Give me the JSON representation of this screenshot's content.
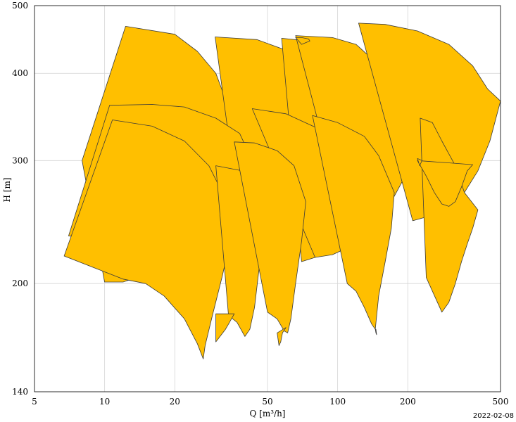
{
  "chart_data": {
    "type": "area",
    "description_unit": "pump performance ranges",
    "xlabel": "Q [m³/h]",
    "ylabel": "H [m]",
    "x_scale": "log",
    "y_scale": "log",
    "xlim": [
      5,
      500
    ],
    "ylim": [
      140,
      500
    ],
    "x_ticks": [
      5,
      10,
      20,
      50,
      100,
      200,
      500
    ],
    "x_tick_labels": [
      "5",
      "10",
      "20",
      "50",
      "100",
      "200",
      "500"
    ],
    "y_ticks": [
      140,
      200,
      300,
      400,
      500
    ],
    "y_tick_labels": [
      "140",
      "200",
      "300",
      "400",
      "500"
    ],
    "grid": true,
    "fill_color": "#FFBF00",
    "edge_color": "#3a3a3a",
    "footer_date": "2022-02-08",
    "series": [
      {
        "points": [
          [
            8,
            300
          ],
          [
            12.3,
            467
          ],
          [
            20,
            455
          ],
          [
            25,
            430
          ],
          [
            30,
            400
          ],
          [
            36,
            340
          ],
          [
            37,
            300
          ],
          [
            33,
            262
          ],
          [
            28,
            240
          ],
          [
            22,
            222
          ],
          [
            18,
            212
          ],
          [
            15,
            206
          ],
          [
            12,
            201
          ],
          [
            10,
            201
          ],
          [
            8,
            300
          ]
        ]
      },
      {
        "points": [
          [
            29.8,
            451
          ],
          [
            45,
            447
          ],
          [
            62,
            430
          ],
          [
            78,
            400
          ],
          [
            100,
            360
          ],
          [
            105,
            330
          ],
          [
            100,
            300
          ],
          [
            80,
            262
          ],
          [
            60,
            235
          ],
          [
            50,
            225
          ],
          [
            40,
            219
          ],
          [
            29.8,
            451
          ]
        ]
      },
      {
        "points": [
          [
            57.5,
            449
          ],
          [
            75,
            445
          ],
          [
            95,
            430
          ],
          [
            115,
            410
          ],
          [
            140,
            380
          ],
          [
            165,
            340
          ],
          [
            170,
            305
          ],
          [
            162,
            295
          ],
          [
            140,
            265
          ],
          [
            120,
            240
          ],
          [
            100,
            225
          ],
          [
            80,
            218
          ],
          [
            70,
            215
          ],
          [
            57.5,
            449
          ]
        ]
      },
      {
        "points": [
          [
            66,
            453
          ],
          [
            95,
            450
          ],
          [
            120,
            440
          ],
          [
            140,
            420
          ],
          [
            180,
            380
          ],
          [
            210,
            340
          ],
          [
            212,
            310
          ],
          [
            195,
            285
          ],
          [
            170,
            262
          ],
          [
            150,
            250
          ],
          [
            130,
            242
          ],
          [
            110,
            236
          ],
          [
            66,
            453
          ]
        ]
      },
      {
        "points": [
          [
            123,
            472
          ],
          [
            160,
            470
          ],
          [
            220,
            460
          ],
          [
            300,
            440
          ],
          [
            380,
            410
          ],
          [
            440,
            380
          ],
          [
            500,
            365
          ],
          [
            450,
            320
          ],
          [
            400,
            290
          ],
          [
            350,
            270
          ],
          [
            300,
            258
          ],
          [
            250,
            250
          ],
          [
            210,
            246
          ],
          [
            123,
            472
          ]
        ]
      },
      {
        "points": [
          [
            7,
            234
          ],
          [
            10.5,
            360
          ],
          [
            16,
            361
          ],
          [
            22,
            358
          ],
          [
            30,
            345
          ],
          [
            38,
            328
          ],
          [
            43,
            300
          ],
          [
            41,
            272
          ],
          [
            37,
            255
          ],
          [
            31,
            240
          ],
          [
            26,
            232
          ],
          [
            20,
            225
          ],
          [
            7,
            234
          ]
        ]
      },
      {
        "points": [
          [
            43,
            356
          ],
          [
            60,
            350
          ],
          [
            80,
            335
          ],
          [
            95,
            320
          ],
          [
            120,
            295
          ],
          [
            140,
            270
          ],
          [
            145,
            258
          ],
          [
            140,
            245
          ],
          [
            125,
            232
          ],
          [
            110,
            225
          ],
          [
            95,
            220
          ],
          [
            80,
            218
          ],
          [
            43,
            356
          ]
        ]
      },
      {
        "points": [
          [
            6.7,
            219
          ],
          [
            10.8,
            343
          ],
          [
            16,
            336
          ],
          [
            22,
            320
          ],
          [
            28,
            295
          ],
          [
            32,
            270
          ],
          [
            35,
            235
          ],
          [
            32,
            205
          ],
          [
            29,
            180
          ],
          [
            27,
            163
          ],
          [
            26.5,
            156
          ],
          [
            25,
            164
          ],
          [
            22,
            178
          ],
          [
            18,
            192
          ],
          [
            15,
            200
          ],
          [
            12,
            203
          ],
          [
            6.7,
            219
          ]
        ]
      },
      {
        "points": [
          [
            30,
            295
          ],
          [
            39,
            290
          ],
          [
            45,
            270
          ],
          [
            48,
            240
          ],
          [
            46,
            210
          ],
          [
            44,
            185
          ],
          [
            42,
            172
          ],
          [
            40,
            168
          ],
          [
            37,
            176
          ],
          [
            34,
            180
          ],
          [
            30,
            295
          ]
        ]
      },
      {
        "points": [
          [
            36,
            319
          ],
          [
            44,
            318
          ],
          [
            55,
            310
          ],
          [
            65,
            295
          ],
          [
            73,
            262
          ],
          [
            70,
            230
          ],
          [
            66,
            200
          ],
          [
            63,
            178
          ],
          [
            61,
            170
          ],
          [
            59,
            171
          ],
          [
            55,
            178
          ],
          [
            50,
            182
          ],
          [
            36,
            319
          ]
        ]
      },
      {
        "points": [
          [
            78,
            348
          ],
          [
            100,
            340
          ],
          [
            130,
            325
          ],
          [
            150,
            305
          ],
          [
            175,
            270
          ],
          [
            170,
            240
          ],
          [
            160,
            215
          ],
          [
            150,
            192
          ],
          [
            145,
            172
          ],
          [
            140,
            175
          ],
          [
            130,
            185
          ],
          [
            120,
            195
          ],
          [
            110,
            200
          ],
          [
            78,
            348
          ]
        ]
      },
      {
        "points": [
          [
            66,
            450
          ],
          [
            70,
            450
          ],
          [
            75,
            448
          ],
          [
            76,
            445
          ],
          [
            70,
            440
          ],
          [
            66,
            450
          ]
        ]
      },
      {
        "points": [
          [
            226,
            345
          ],
          [
            255,
            340
          ],
          [
            280,
            320
          ],
          [
            320,
            295
          ],
          [
            350,
            270
          ],
          [
            400,
            255
          ],
          [
            380,
            240
          ],
          [
            360,
            228
          ],
          [
            340,
            215
          ],
          [
            320,
            200
          ],
          [
            300,
            188
          ],
          [
            280,
            182
          ],
          [
            240,
            204
          ],
          [
            226,
            345
          ]
        ]
      },
      {
        "points": [
          [
            220,
            300
          ],
          [
            240,
            285
          ],
          [
            260,
            270
          ],
          [
            280,
            260
          ],
          [
            300,
            258
          ],
          [
            320,
            262
          ],
          [
            340,
            275
          ],
          [
            360,
            290
          ],
          [
            380,
            296
          ],
          [
            220,
            300
          ]
        ]
      },
      {
        "points": [
          [
            36,
            181
          ],
          [
            34,
            175
          ],
          [
            33,
            172
          ],
          [
            30,
            165
          ],
          [
            30,
            181
          ],
          [
            36,
            181
          ]
        ]
      },
      {
        "points": [
          [
            60,
            173
          ],
          [
            58,
            170
          ],
          [
            57,
            165
          ],
          [
            56,
            163
          ],
          [
            55,
            170
          ],
          [
            60,
            173
          ]
        ]
      },
      {
        "points": [
          [
            145,
            172
          ],
          [
            146,
            170
          ],
          [
            147,
            169
          ],
          [
            146,
            172
          ],
          [
            145,
            172
          ]
        ]
      },
      {
        "points": [
          [
            220,
            302
          ],
          [
            230,
            300
          ],
          [
            225,
            295
          ],
          [
            220,
            302
          ]
        ]
      }
    ]
  }
}
